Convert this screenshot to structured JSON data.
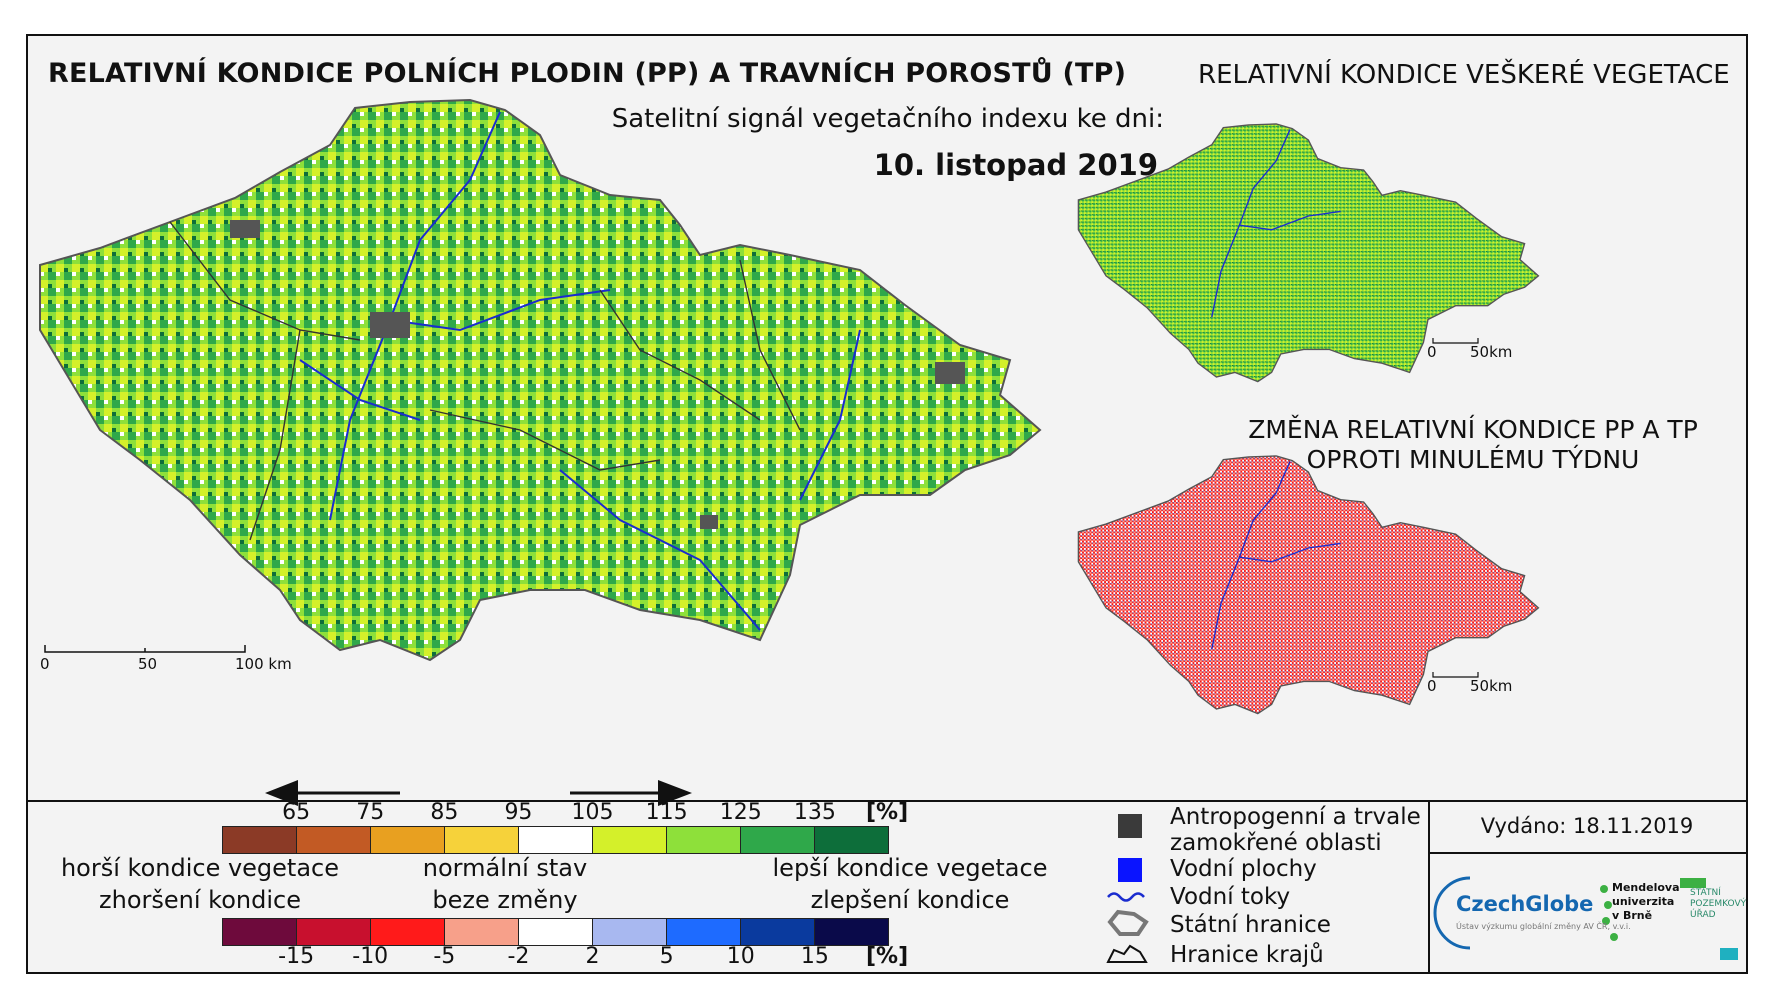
{
  "titles": {
    "main": "RELATIVNÍ KONDICE POLNÍCH PLODIN (PP) A TRAVNÍCH POROSTŮ (TP)",
    "right_top": "RELATIVNÍ KONDICE VEŠKERÉ VEGETACE",
    "subtitle": "Satelitní signál vegetačního indexu ke dni:",
    "date": "10. listopad 2019",
    "change_line1": "ZMĚNA RELATIVNÍ KONDICE PP A TP",
    "change_line2": "OPROTI MINULÉMU TÝDNU"
  },
  "scales": {
    "main": [
      "0",
      "50",
      "100 km"
    ],
    "small_top": [
      "0",
      "50km"
    ],
    "small_bottom": [
      "0",
      "50km"
    ]
  },
  "legend": {
    "condition_ticks": [
      "65",
      "75",
      "85",
      "95",
      "105",
      "115",
      "125",
      "135"
    ],
    "condition_unit": "[%]",
    "condition_colors": [
      "#8b3a26",
      "#c25a24",
      "#e8a020",
      "#f6d23a",
      "#ffffff",
      "#d4f02a",
      "#8ee03a",
      "#2fa84a",
      "#0d6e3a"
    ],
    "change_ticks": [
      "-15",
      "-10",
      "-5",
      "-2",
      "2",
      "5",
      "10",
      "15"
    ],
    "change_unit": "[%]",
    "change_colors": [
      "#6e0a3c",
      "#c8102e",
      "#ff1a1a",
      "#f7a08a",
      "#ffffff",
      "#a8b8f0",
      "#1e6bff",
      "#0a3a9e",
      "#0a0a4a"
    ],
    "worse_line1": "horší kondice vegetace",
    "worse_line2": "zhoršení kondice",
    "normal_line1": "normální stav",
    "normal_line2": "beze změny",
    "better_line1": "lepší kondice vegetace",
    "better_line2": "zlepšení kondice"
  },
  "symbols": {
    "anthropogenic_line1": "Antropogenní a trvale",
    "anthropogenic_line2": "zamokřené oblasti",
    "water_areas": "Vodní plochy",
    "rivers": "Vodní toky",
    "state_border": "Státní hranice",
    "regional_border": "Hranice krajů"
  },
  "issued": "Vydáno: 18.11.2019",
  "logos": {
    "czechglobe": "CzechGlobe",
    "czechglobe_sub": "Ústav výzkumu globální změny AV ČR, v.v.i.",
    "mendel": [
      "Mendelova",
      "univerzita",
      "v Brně"
    ],
    "spu": [
      "STÁTNÍ",
      "POZEMKOVÝ",
      "ÚŘAD"
    ]
  }
}
